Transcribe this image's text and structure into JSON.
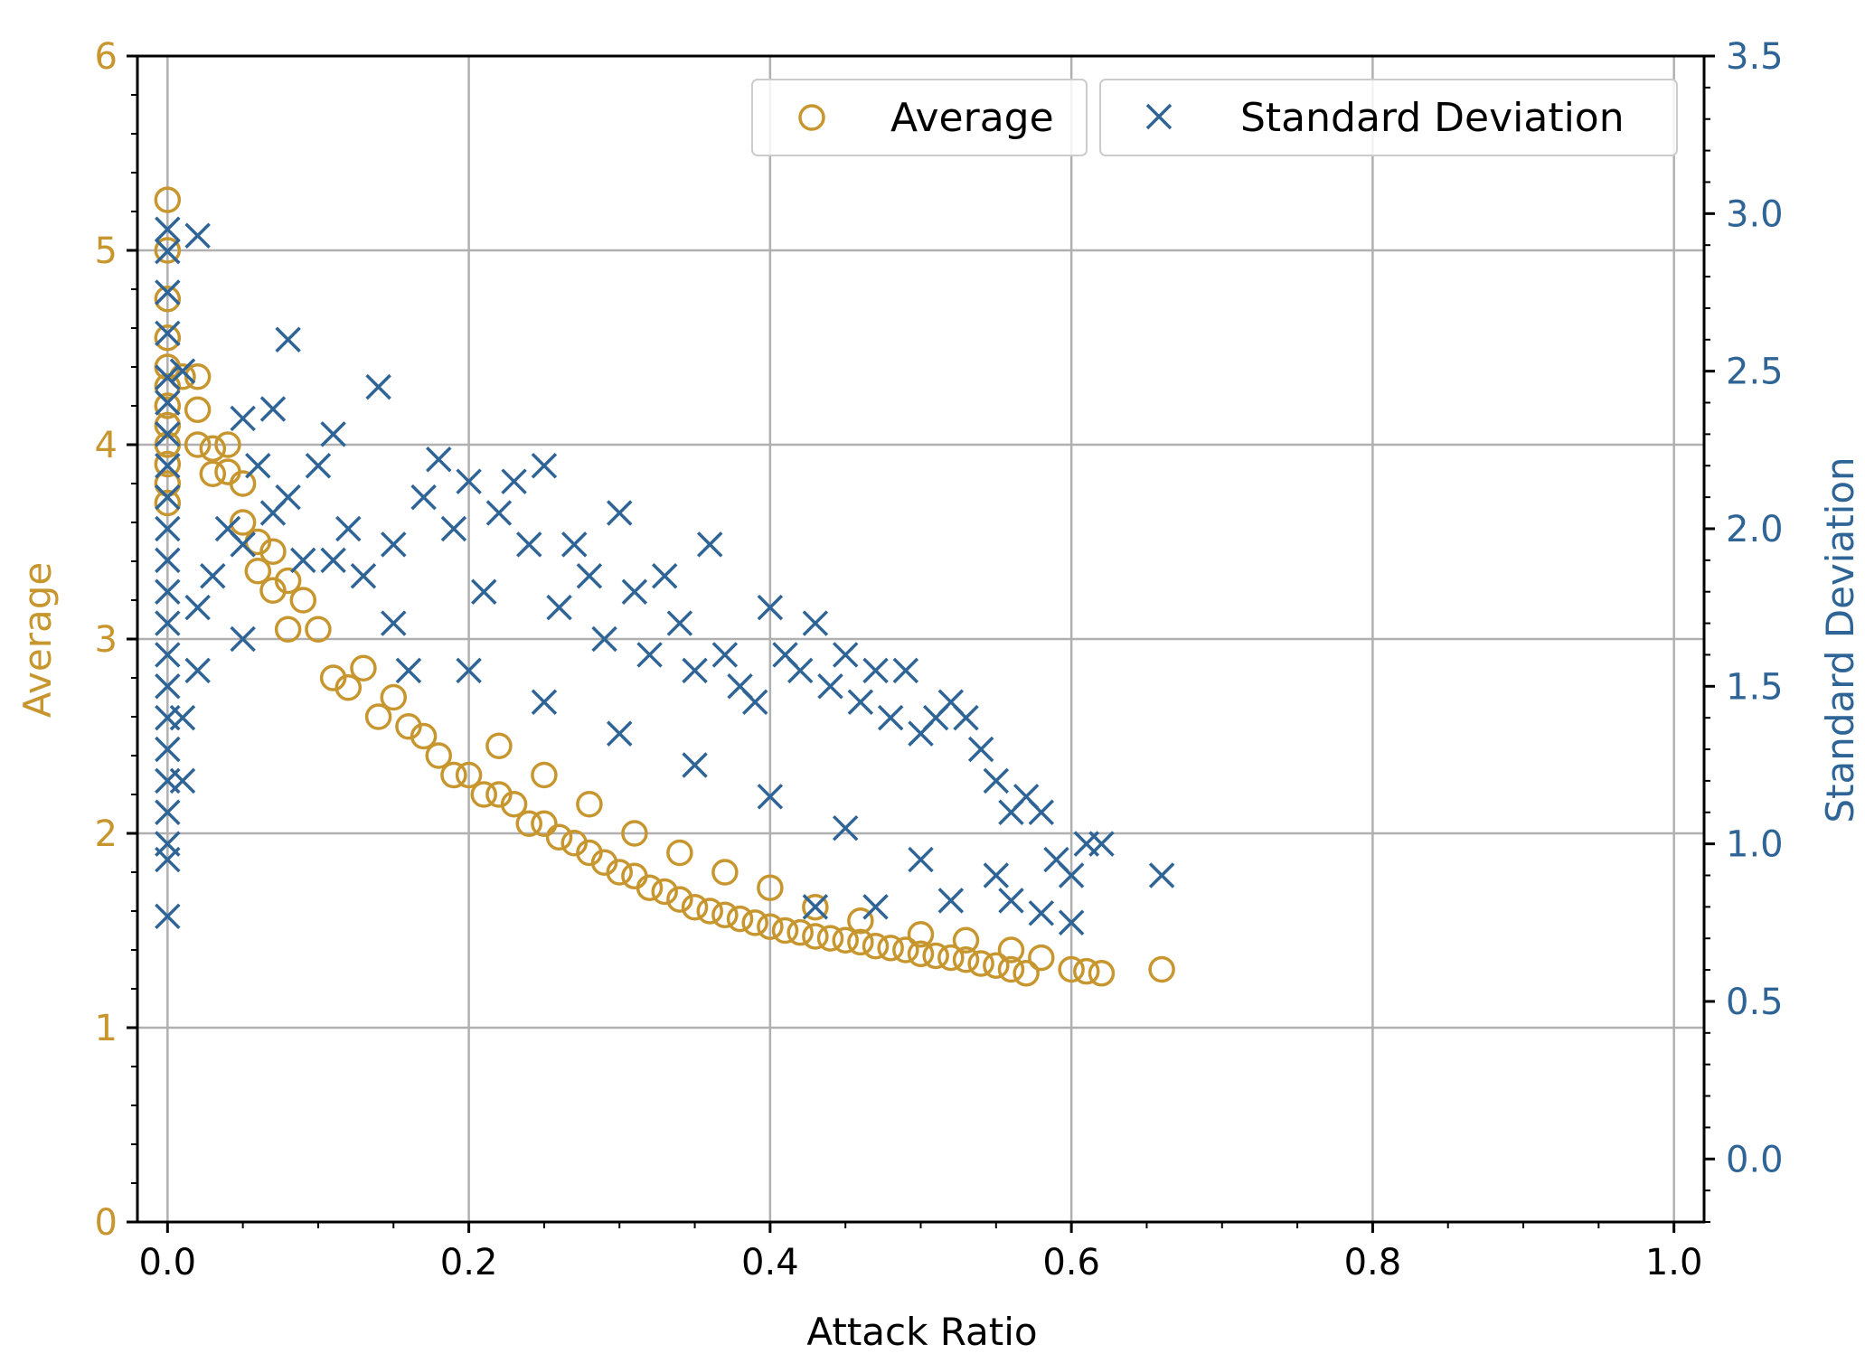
{
  "colors": {
    "average": "#C8962E",
    "std": "#2F6496",
    "grid": "#b0b0b0",
    "axis": "#000000"
  },
  "chart_data": {
    "type": "scatter",
    "xlabel": "Attack Ratio",
    "ylabel_left": "Average",
    "ylabel_right": "Standard Deviation",
    "xlim": [
      -0.02,
      1.02
    ],
    "ylim_left": [
      0,
      6
    ],
    "ylim_right": [
      -0.2,
      3.5
    ],
    "x_ticks": [
      "0.0",
      "0.2",
      "0.4",
      "0.6",
      "0.8",
      "1.0"
    ],
    "y_left_ticks": [
      "0",
      "1",
      "2",
      "3",
      "4",
      "5",
      "6"
    ],
    "y_right_ticks": [
      "0.0",
      "0.5",
      "1.0",
      "1.5",
      "2.0",
      "2.5",
      "3.0",
      "3.5"
    ],
    "grid": true,
    "legend_position": "top-right",
    "series": [
      {
        "name": "Average",
        "marker": "circle",
        "axis": "left",
        "points": [
          [
            0.0,
            5.26
          ],
          [
            0.0,
            5.0
          ],
          [
            0.0,
            4.75
          ],
          [
            0.0,
            4.55
          ],
          [
            0.0,
            4.4
          ],
          [
            0.0,
            4.3
          ],
          [
            0.0,
            4.2
          ],
          [
            0.0,
            4.1
          ],
          [
            0.0,
            4.0
          ],
          [
            0.0,
            3.9
          ],
          [
            0.0,
            3.8
          ],
          [
            0.0,
            3.7
          ],
          [
            0.01,
            4.35
          ],
          [
            0.02,
            4.35
          ],
          [
            0.02,
            4.18
          ],
          [
            0.02,
            4.0
          ],
          [
            0.03,
            3.98
          ],
          [
            0.03,
            3.85
          ],
          [
            0.04,
            4.0
          ],
          [
            0.04,
            3.86
          ],
          [
            0.05,
            3.8
          ],
          [
            0.05,
            3.6
          ],
          [
            0.06,
            3.5
          ],
          [
            0.06,
            3.35
          ],
          [
            0.07,
            3.45
          ],
          [
            0.07,
            3.25
          ],
          [
            0.08,
            3.3
          ],
          [
            0.08,
            3.05
          ],
          [
            0.09,
            3.2
          ],
          [
            0.1,
            3.05
          ],
          [
            0.11,
            2.8
          ],
          [
            0.12,
            2.75
          ],
          [
            0.13,
            2.85
          ],
          [
            0.14,
            2.6
          ],
          [
            0.15,
            2.7
          ],
          [
            0.16,
            2.55
          ],
          [
            0.17,
            2.5
          ],
          [
            0.18,
            2.4
          ],
          [
            0.19,
            2.3
          ],
          [
            0.2,
            2.3
          ],
          [
            0.21,
            2.2
          ],
          [
            0.22,
            2.2
          ],
          [
            0.23,
            2.15
          ],
          [
            0.24,
            2.05
          ],
          [
            0.25,
            2.05
          ],
          [
            0.26,
            1.98
          ],
          [
            0.27,
            1.95
          ],
          [
            0.28,
            1.9
          ],
          [
            0.29,
            1.85
          ],
          [
            0.3,
            1.8
          ],
          [
            0.31,
            1.78
          ],
          [
            0.32,
            1.72
          ],
          [
            0.33,
            1.7
          ],
          [
            0.34,
            1.66
          ],
          [
            0.35,
            1.62
          ],
          [
            0.36,
            1.6
          ],
          [
            0.37,
            1.58
          ],
          [
            0.38,
            1.56
          ],
          [
            0.39,
            1.54
          ],
          [
            0.4,
            1.52
          ],
          [
            0.41,
            1.5
          ],
          [
            0.42,
            1.49
          ],
          [
            0.43,
            1.47
          ],
          [
            0.44,
            1.46
          ],
          [
            0.45,
            1.45
          ],
          [
            0.46,
            1.44
          ],
          [
            0.47,
            1.42
          ],
          [
            0.48,
            1.41
          ],
          [
            0.49,
            1.4
          ],
          [
            0.5,
            1.38
          ],
          [
            0.51,
            1.37
          ],
          [
            0.52,
            1.36
          ],
          [
            0.53,
            1.35
          ],
          [
            0.54,
            1.33
          ],
          [
            0.55,
            1.32
          ],
          [
            0.56,
            1.3
          ],
          [
            0.57,
            1.28
          ],
          [
            0.58,
            1.36
          ],
          [
            0.6,
            1.3
          ],
          [
            0.61,
            1.29
          ],
          [
            0.62,
            1.28
          ],
          [
            0.66,
            1.3
          ],
          [
            0.22,
            2.45
          ],
          [
            0.25,
            2.3
          ],
          [
            0.28,
            2.15
          ],
          [
            0.31,
            2.0
          ],
          [
            0.34,
            1.9
          ],
          [
            0.37,
            1.8
          ],
          [
            0.4,
            1.72
          ],
          [
            0.43,
            1.62
          ],
          [
            0.46,
            1.55
          ],
          [
            0.5,
            1.48
          ],
          [
            0.53,
            1.45
          ],
          [
            0.56,
            1.4
          ]
        ]
      },
      {
        "name": "Standard Deviation",
        "marker": "x",
        "axis": "right",
        "points": [
          [
            0.0,
            2.95
          ],
          [
            0.0,
            2.88
          ],
          [
            0.0,
            2.75
          ],
          [
            0.0,
            2.62
          ],
          [
            0.0,
            2.48
          ],
          [
            0.0,
            2.4
          ],
          [
            0.0,
            2.3
          ],
          [
            0.0,
            2.2
          ],
          [
            0.0,
            2.1
          ],
          [
            0.0,
            2.0
          ],
          [
            0.0,
            1.9
          ],
          [
            0.0,
            1.8
          ],
          [
            0.0,
            1.7
          ],
          [
            0.0,
            1.6
          ],
          [
            0.0,
            1.5
          ],
          [
            0.0,
            1.4
          ],
          [
            0.0,
            1.3
          ],
          [
            0.0,
            1.2
          ],
          [
            0.0,
            1.1
          ],
          [
            0.0,
            1.0
          ],
          [
            0.0,
            0.95
          ],
          [
            0.0,
            0.77
          ],
          [
            0.01,
            2.5
          ],
          [
            0.01,
            1.4
          ],
          [
            0.01,
            1.2
          ],
          [
            0.02,
            2.93
          ],
          [
            0.02,
            1.75
          ],
          [
            0.02,
            1.55
          ],
          [
            0.03,
            1.85
          ],
          [
            0.04,
            2.0
          ],
          [
            0.05,
            2.35
          ],
          [
            0.05,
            1.95
          ],
          [
            0.05,
            1.65
          ],
          [
            0.06,
            2.2
          ],
          [
            0.07,
            2.38
          ],
          [
            0.07,
            2.05
          ],
          [
            0.08,
            2.6
          ],
          [
            0.08,
            2.1
          ],
          [
            0.09,
            1.9
          ],
          [
            0.1,
            2.2
          ],
          [
            0.11,
            2.3
          ],
          [
            0.11,
            1.9
          ],
          [
            0.12,
            2.0
          ],
          [
            0.13,
            1.85
          ],
          [
            0.14,
            2.45
          ],
          [
            0.15,
            1.95
          ],
          [
            0.16,
            1.55
          ],
          [
            0.17,
            2.1
          ],
          [
            0.18,
            2.22
          ],
          [
            0.19,
            2.0
          ],
          [
            0.2,
            2.15
          ],
          [
            0.21,
            1.8
          ],
          [
            0.22,
            2.05
          ],
          [
            0.23,
            2.15
          ],
          [
            0.24,
            1.95
          ],
          [
            0.25,
            2.2
          ],
          [
            0.26,
            1.75
          ],
          [
            0.27,
            1.95
          ],
          [
            0.28,
            1.85
          ],
          [
            0.29,
            1.65
          ],
          [
            0.3,
            2.05
          ],
          [
            0.31,
            1.8
          ],
          [
            0.32,
            1.6
          ],
          [
            0.33,
            1.85
          ],
          [
            0.34,
            1.7
          ],
          [
            0.35,
            1.55
          ],
          [
            0.36,
            1.95
          ],
          [
            0.37,
            1.6
          ],
          [
            0.38,
            1.5
          ],
          [
            0.39,
            1.45
          ],
          [
            0.4,
            1.75
          ],
          [
            0.41,
            1.6
          ],
          [
            0.42,
            1.55
          ],
          [
            0.43,
            1.7
          ],
          [
            0.44,
            1.5
          ],
          [
            0.45,
            1.6
          ],
          [
            0.46,
            1.45
          ],
          [
            0.47,
            1.55
          ],
          [
            0.48,
            1.4
          ],
          [
            0.49,
            1.55
          ],
          [
            0.5,
            1.35
          ],
          [
            0.51,
            1.4
          ],
          [
            0.52,
            1.45
          ],
          [
            0.53,
            1.4
          ],
          [
            0.54,
            1.3
          ],
          [
            0.55,
            1.2
          ],
          [
            0.56,
            1.1
          ],
          [
            0.57,
            1.15
          ],
          [
            0.58,
            1.1
          ],
          [
            0.59,
            0.95
          ],
          [
            0.6,
            0.9
          ],
          [
            0.61,
            1.0
          ],
          [
            0.62,
            1.0
          ],
          [
            0.6,
            0.75
          ],
          [
            0.66,
            0.9
          ],
          [
            0.15,
            1.7
          ],
          [
            0.2,
            1.55
          ],
          [
            0.25,
            1.45
          ],
          [
            0.3,
            1.35
          ],
          [
            0.35,
            1.25
          ],
          [
            0.4,
            1.15
          ],
          [
            0.45,
            1.05
          ],
          [
            0.5,
            0.95
          ],
          [
            0.55,
            0.9
          ],
          [
            0.43,
            0.8
          ],
          [
            0.47,
            0.8
          ],
          [
            0.52,
            0.82
          ],
          [
            0.56,
            0.82
          ],
          [
            0.58,
            0.78
          ]
        ]
      }
    ]
  }
}
